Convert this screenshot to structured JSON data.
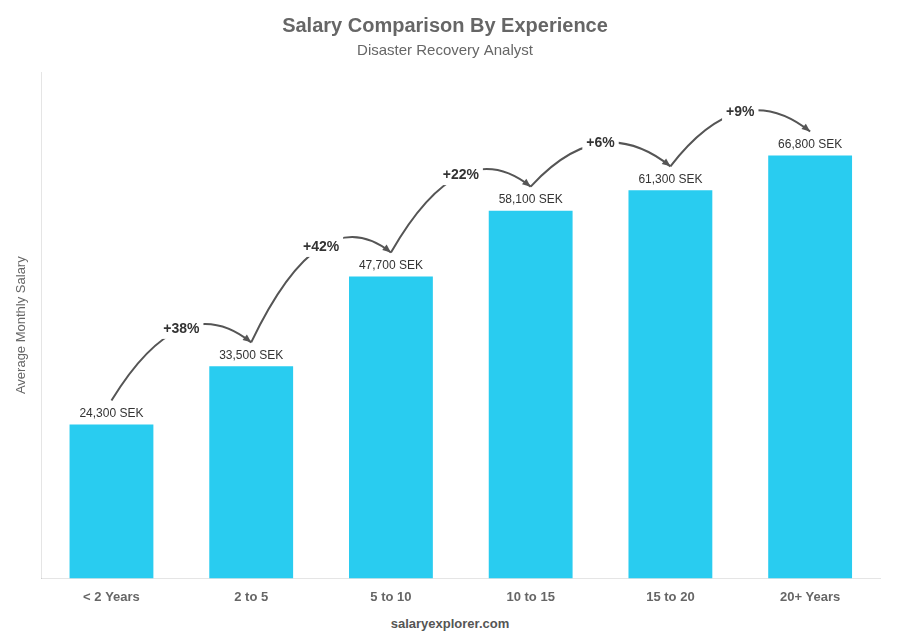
{
  "chart_data": {
    "type": "bar",
    "title": "Salary Comparison By Experience",
    "subtitle": "Disaster Recovery Analyst",
    "ylabel": "Average Monthly Salary",
    "categories": [
      "< 2 Years",
      "2 to 5",
      "5 to 10",
      "10 to 15",
      "15 to 20",
      "20+ Years"
    ],
    "values": [
      24300,
      33500,
      47700,
      58100,
      61300,
      66800
    ],
    "value_labels": [
      "24,300 SEK",
      "33,500 SEK",
      "47,700 SEK",
      "58,100 SEK",
      "61,300 SEK",
      "66,800 SEK"
    ],
    "data_labels": true,
    "annotations": [
      "+38%",
      "+42%",
      "+22%",
      "+6%",
      "+9%"
    ],
    "footer": "salaryexplorer.com",
    "color": "#29ccf0",
    "ylim": [
      0,
      80000
    ],
    "tick_labels": "x",
    "grid": false
  }
}
